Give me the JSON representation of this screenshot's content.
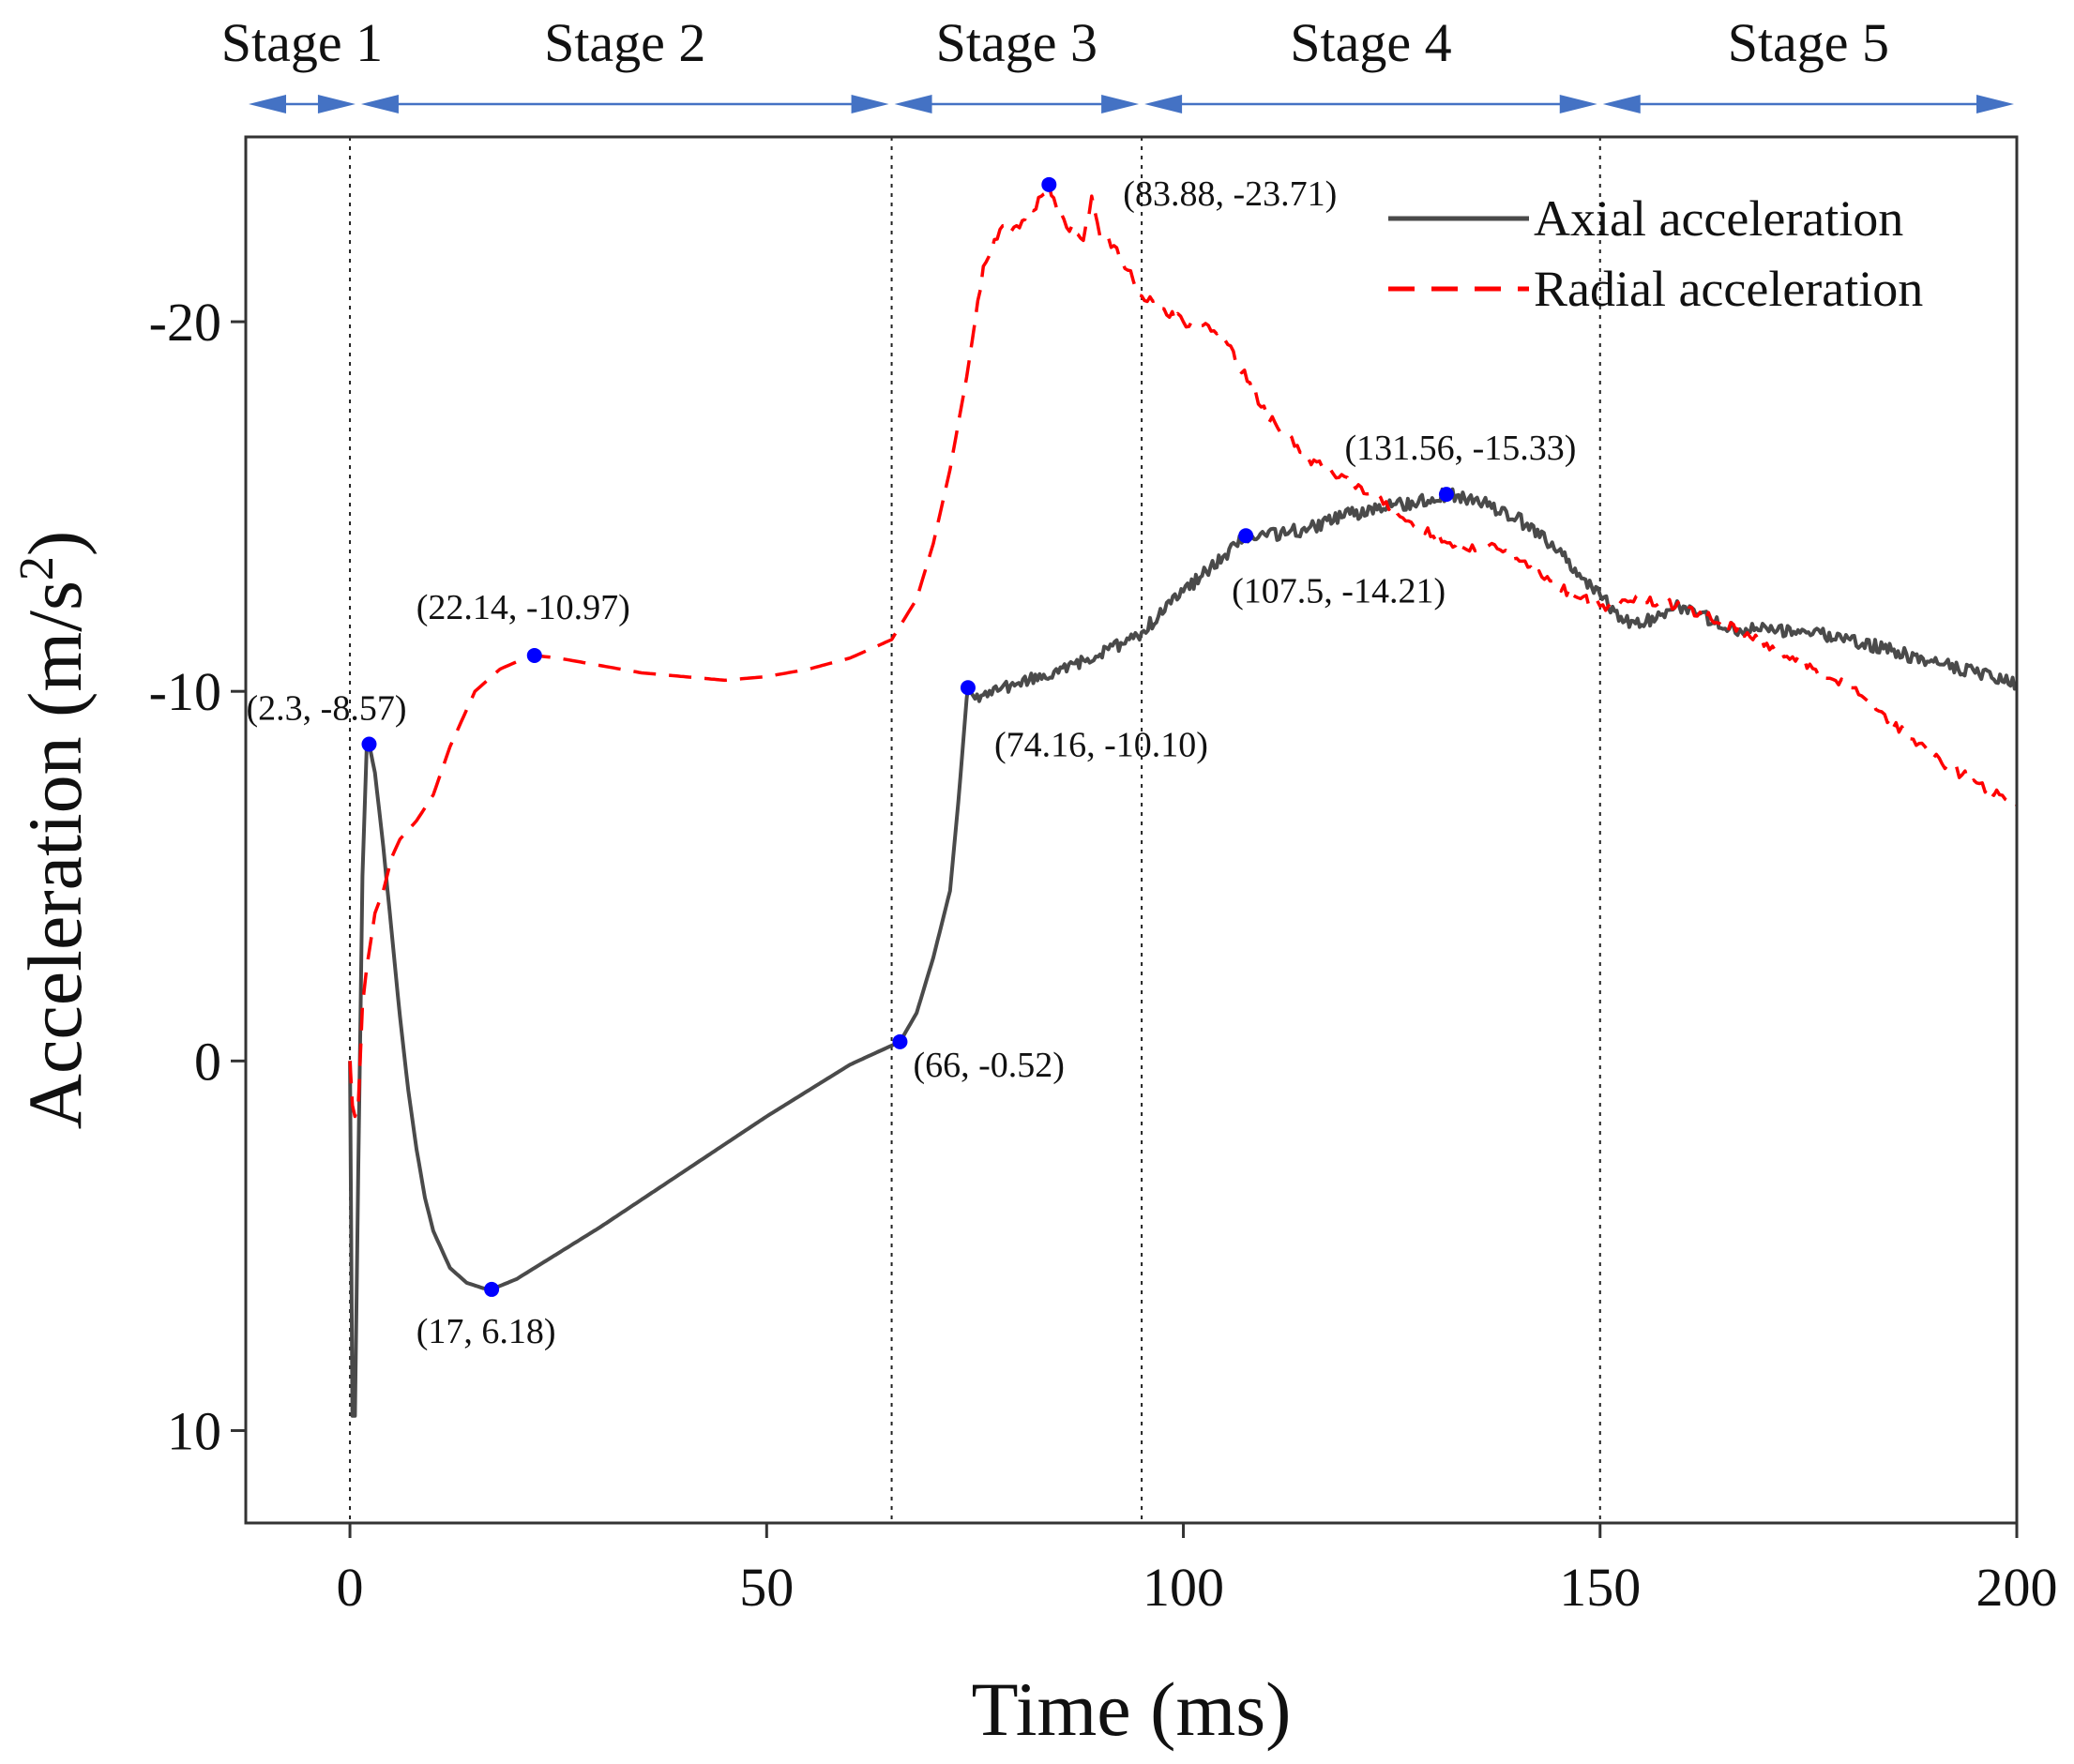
{
  "chart_data": {
    "type": "line",
    "title": "",
    "xlabel": "Time (ms)",
    "ylabel_prefix": "Acceleration (m/s",
    "ylabel_superscript": "2",
    "ylabel_suffix": ")",
    "xlim": [
      -12.5,
      200
    ],
    "ylim": [
      12.5,
      -25
    ],
    "y_inverted": true,
    "xticks": [
      0,
      50,
      100,
      150,
      200
    ],
    "yticks": [
      10,
      0,
      -10,
      -20
    ],
    "grid": false,
    "legend_position": "top-right",
    "colors": {
      "axial": "#4a4a4a",
      "radial": "#ff0000",
      "marker": "#0000ff",
      "stage_arrow": "#4472c4",
      "axis": "#333333"
    },
    "stage_boundaries": [
      0,
      65,
      95,
      150
    ],
    "stages": [
      {
        "label": "Stage 1",
        "start": -12.5,
        "end": 1
      },
      {
        "label": "Stage 2",
        "start": 1,
        "end": 65
      },
      {
        "label": "Stage 3",
        "start": 65,
        "end": 95
      },
      {
        "label": "Stage 4",
        "start": 95,
        "end": 150
      },
      {
        "label": "Stage 5",
        "start": 150,
        "end": 200
      }
    ],
    "series": [
      {
        "name": "Axial acceleration",
        "style": "solid",
        "x": [
          0,
          0.3,
          0.6,
          1.0,
          1.5,
          2.0,
          2.3,
          3,
          4,
          5,
          6,
          7,
          8,
          9,
          10,
          12,
          14,
          16,
          17,
          20,
          25,
          30,
          40,
          50,
          60,
          66,
          68,
          70,
          72,
          73,
          74,
          74.16,
          75,
          76,
          80,
          85,
          90,
          95,
          100,
          105,
          107.5,
          110,
          115,
          120,
          125,
          131.56,
          135,
          140,
          145,
          150,
          153,
          155,
          158,
          160,
          162,
          165,
          170,
          175,
          180,
          185,
          190,
          195,
          200
        ],
        "y": [
          0,
          9.6,
          9.6,
          3.0,
          -5.0,
          -8.4,
          -8.57,
          -7.8,
          -5.8,
          -3.5,
          -1.2,
          0.8,
          2.4,
          3.7,
          4.6,
          5.6,
          6.0,
          6.15,
          6.18,
          5.9,
          5.2,
          4.5,
          3.0,
          1.5,
          0.1,
          -0.52,
          -1.3,
          -2.8,
          -4.6,
          -7.0,
          -9.8,
          -10.1,
          -9.8,
          -9.9,
          -10.2,
          -10.5,
          -11.0,
          -11.6,
          -12.7,
          -13.7,
          -14.21,
          -14.2,
          -14.4,
          -14.8,
          -15.0,
          -15.33,
          -15.2,
          -14.7,
          -13.8,
          -12.6,
          -11.9,
          -11.8,
          -12.2,
          -12.3,
          -12.1,
          -11.7,
          -11.7,
          -11.6,
          -11.4,
          -11.1,
          -10.8,
          -10.5,
          -10.2
        ]
      },
      {
        "name": "Radial acceleration",
        "style": "dashed",
        "x": [
          0,
          0.3,
          0.6,
          1.0,
          1.5,
          2.0,
          3.0,
          4.0,
          5.0,
          6,
          8,
          10,
          12,
          15,
          18,
          20,
          22.14,
          25,
          30,
          35,
          40,
          45,
          50,
          55,
          60,
          65,
          68,
          70,
          72,
          74,
          76,
          78,
          80,
          82,
          83.88,
          85,
          87,
          88,
          89,
          90,
          92,
          95,
          100,
          103,
          105,
          110,
          115,
          120,
          125,
          130,
          135,
          137,
          140,
          145,
          150,
          155,
          160,
          165,
          170,
          180,
          190,
          200
        ],
        "y": [
          0,
          1.2,
          1.5,
          1.2,
          -1.5,
          -2.5,
          -4.0,
          -4.6,
          -5.5,
          -6.0,
          -6.5,
          -7.2,
          -8.5,
          -10.0,
          -10.6,
          -10.8,
          -10.97,
          -10.9,
          -10.7,
          -10.5,
          -10.4,
          -10.3,
          -10.4,
          -10.6,
          -10.9,
          -11.4,
          -12.5,
          -14.0,
          -16.0,
          -18.5,
          -21.5,
          -22.5,
          -22.6,
          -23.0,
          -23.71,
          -22.9,
          -22.4,
          -22.2,
          -23.4,
          -22.3,
          -22.0,
          -20.7,
          -20.0,
          -19.9,
          -19.5,
          -17.5,
          -16.3,
          -15.6,
          -15.0,
          -14.2,
          -13.8,
          -14.0,
          -13.6,
          -12.8,
          -12.3,
          -12.5,
          -12.3,
          -11.8,
          -11.3,
          -10.1,
          -8.2,
          -6.9
        ]
      }
    ],
    "annotations": [
      {
        "x": 2.3,
        "y": -8.57,
        "text": "(2.3, -8.57)",
        "anchor": "end"
      },
      {
        "x": 17,
        "y": 6.18,
        "text": "(17, 6.18)",
        "anchor": "middle"
      },
      {
        "x": 22.14,
        "y": -10.97,
        "text": "(22.14, -10.97)",
        "anchor": "middle"
      },
      {
        "x": 66,
        "y": -0.52,
        "text": "(66, -0.52)",
        "anchor": "start"
      },
      {
        "x": 74.16,
        "y": -10.1,
        "text": "(74.16, -10.10)",
        "anchor": "start"
      },
      {
        "x": 83.88,
        "y": -23.71,
        "text": "(83.88, -23.71)",
        "anchor": "start"
      },
      {
        "x": 107.5,
        "y": -14.21,
        "text": "(107.5, -14.21)",
        "anchor": "start"
      },
      {
        "x": 131.56,
        "y": -15.33,
        "text": "(131.56, -15.33)",
        "anchor": "middle"
      }
    ]
  }
}
